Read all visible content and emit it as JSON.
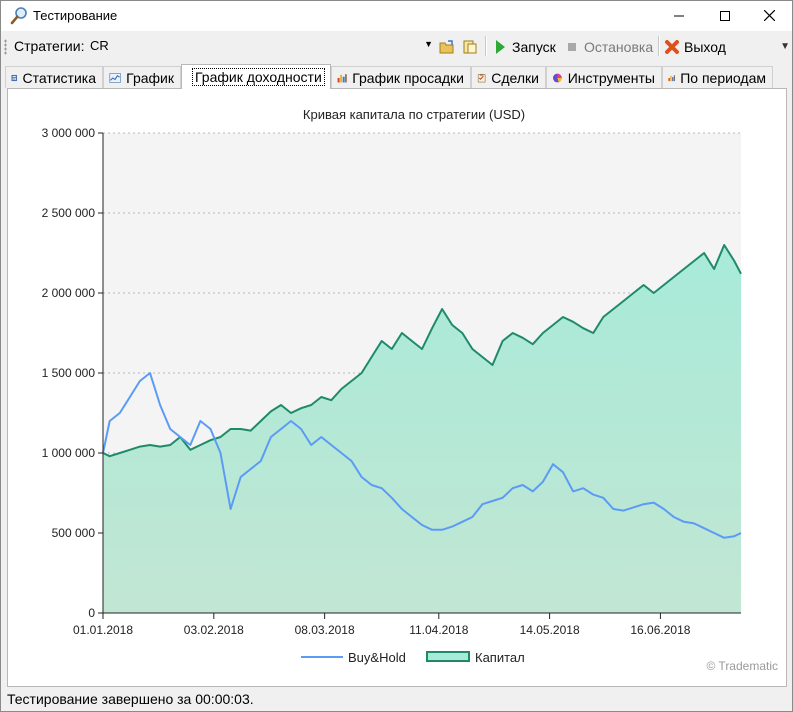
{
  "window": {
    "title": "Тестирование"
  },
  "toolbar": {
    "strategy_label": "Стратегии:",
    "strategy_value": "CR",
    "run_label": "Запуск",
    "stop_label": "Остановка",
    "exit_label": "Выход"
  },
  "tabs": [
    {
      "label": "Статистика",
      "icon": "calculator-icon"
    },
    {
      "label": "График",
      "icon": "chart-icon"
    },
    {
      "label": "График доходности",
      "icon": "bar-chart-icon",
      "active": true
    },
    {
      "label": "График просадки",
      "icon": "bar-chart-icon"
    },
    {
      "label": "Сделки",
      "icon": "clipboard-icon"
    },
    {
      "label": "Инструменты",
      "icon": "pie-icon"
    },
    {
      "label": "По периодам",
      "icon": "bar-chart-icon"
    }
  ],
  "status": {
    "text": "Тестирование завершено за 00:00:03."
  },
  "colors": {
    "buyhold": "#5b9bf5",
    "capital_line": "#1f8a6a",
    "capital_fill_top": "#a8ead8",
    "capital_fill_bottom": "#c2e6d4",
    "plot_bg": "#f4f4f4"
  },
  "chart_data": {
    "type": "area",
    "title": "Кривая капитала по стратегии (USD)",
    "xlabel": "",
    "ylabel": "",
    "ylim": [
      0,
      3000000
    ],
    "yticks": [
      0,
      500000,
      1000000,
      1500000,
      2000000,
      2500000,
      3000000
    ],
    "ytick_labels": [
      "0",
      "500 000",
      "1 000 000",
      "1 500 000",
      "2 000 000",
      "2 500 000",
      "3 000 000"
    ],
    "xlim": [
      "2018-01-01",
      "2018-07-10"
    ],
    "xticks": [
      "2018-01-01",
      "2018-02-03",
      "2018-03-08",
      "2018-04-11",
      "2018-05-14",
      "2018-06-16"
    ],
    "xtick_labels": [
      "01.01.2018",
      "03.02.2018",
      "08.03.2018",
      "11.04.2018",
      "14.05.2018",
      "16.06.2018"
    ],
    "grid": true,
    "legend": "bottom",
    "watermark": "© Tradematic",
    "series": [
      {
        "name": "Buy&Hold",
        "type": "line",
        "x": [
          "2018-01-01",
          "2018-01-03",
          "2018-01-06",
          "2018-01-09",
          "2018-01-12",
          "2018-01-15",
          "2018-01-18",
          "2018-01-21",
          "2018-01-24",
          "2018-01-27",
          "2018-01-30",
          "2018-02-02",
          "2018-02-05",
          "2018-02-08",
          "2018-02-11",
          "2018-02-14",
          "2018-02-17",
          "2018-02-20",
          "2018-02-23",
          "2018-02-26",
          "2018-03-01",
          "2018-03-04",
          "2018-03-07",
          "2018-03-10",
          "2018-03-13",
          "2018-03-16",
          "2018-03-19",
          "2018-03-22",
          "2018-03-25",
          "2018-03-28",
          "2018-03-31",
          "2018-04-03",
          "2018-04-06",
          "2018-04-09",
          "2018-04-12",
          "2018-04-15",
          "2018-04-18",
          "2018-04-21",
          "2018-04-24",
          "2018-04-27",
          "2018-04-30",
          "2018-05-03",
          "2018-05-06",
          "2018-05-09",
          "2018-05-12",
          "2018-05-15",
          "2018-05-18",
          "2018-05-21",
          "2018-05-24",
          "2018-05-27",
          "2018-05-30",
          "2018-06-02",
          "2018-06-05",
          "2018-06-08",
          "2018-06-11",
          "2018-06-14",
          "2018-06-17",
          "2018-06-20",
          "2018-06-23",
          "2018-06-26",
          "2018-06-29",
          "2018-07-02",
          "2018-07-05",
          "2018-07-08",
          "2018-07-10"
        ],
        "y": [
          1000000,
          1200000,
          1250000,
          1350000,
          1450000,
          1500000,
          1300000,
          1150000,
          1100000,
          1050000,
          1200000,
          1150000,
          1000000,
          650000,
          850000,
          900000,
          950000,
          1100000,
          1150000,
          1200000,
          1150000,
          1050000,
          1100000,
          1050000,
          1000000,
          950000,
          850000,
          800000,
          780000,
          720000,
          650000,
          600000,
          550000,
          520000,
          520000,
          540000,
          570000,
          600000,
          680000,
          700000,
          720000,
          780000,
          800000,
          760000,
          820000,
          930000,
          880000,
          760000,
          780000,
          740000,
          720000,
          650000,
          640000,
          660000,
          680000,
          690000,
          650000,
          600000,
          570000,
          560000,
          530000,
          500000,
          470000,
          480000,
          500000
        ]
      },
      {
        "name": "Капитал",
        "type": "area",
        "x": [
          "2018-01-01",
          "2018-01-03",
          "2018-01-06",
          "2018-01-09",
          "2018-01-12",
          "2018-01-15",
          "2018-01-18",
          "2018-01-21",
          "2018-01-24",
          "2018-01-27",
          "2018-01-30",
          "2018-02-02",
          "2018-02-05",
          "2018-02-08",
          "2018-02-11",
          "2018-02-14",
          "2018-02-17",
          "2018-02-20",
          "2018-02-23",
          "2018-02-26",
          "2018-03-01",
          "2018-03-04",
          "2018-03-07",
          "2018-03-10",
          "2018-03-13",
          "2018-03-16",
          "2018-03-19",
          "2018-03-22",
          "2018-03-25",
          "2018-03-28",
          "2018-03-31",
          "2018-04-03",
          "2018-04-06",
          "2018-04-09",
          "2018-04-12",
          "2018-04-15",
          "2018-04-18",
          "2018-04-21",
          "2018-04-24",
          "2018-04-27",
          "2018-04-30",
          "2018-05-03",
          "2018-05-06",
          "2018-05-09",
          "2018-05-12",
          "2018-05-15",
          "2018-05-18",
          "2018-05-21",
          "2018-05-24",
          "2018-05-27",
          "2018-05-30",
          "2018-06-02",
          "2018-06-05",
          "2018-06-08",
          "2018-06-11",
          "2018-06-14",
          "2018-06-17",
          "2018-06-20",
          "2018-06-23",
          "2018-06-26",
          "2018-06-29",
          "2018-07-02",
          "2018-07-05",
          "2018-07-08",
          "2018-07-10"
        ],
        "y": [
          1000000,
          980000,
          1000000,
          1020000,
          1040000,
          1050000,
          1040000,
          1050000,
          1100000,
          1020000,
          1050000,
          1080000,
          1100000,
          1150000,
          1150000,
          1140000,
          1200000,
          1260000,
          1300000,
          1250000,
          1280000,
          1300000,
          1350000,
          1330000,
          1400000,
          1450000,
          1500000,
          1600000,
          1700000,
          1650000,
          1750000,
          1700000,
          1650000,
          1780000,
          1900000,
          1800000,
          1750000,
          1650000,
          1600000,
          1550000,
          1700000,
          1750000,
          1720000,
          1680000,
          1750000,
          1800000,
          1850000,
          1820000,
          1780000,
          1750000,
          1850000,
          1900000,
          1950000,
          2000000,
          2050000,
          2000000,
          2050000,
          2100000,
          2150000,
          2200000,
          2250000,
          2150000,
          2300000,
          2200000,
          2120000
        ]
      }
    ]
  }
}
